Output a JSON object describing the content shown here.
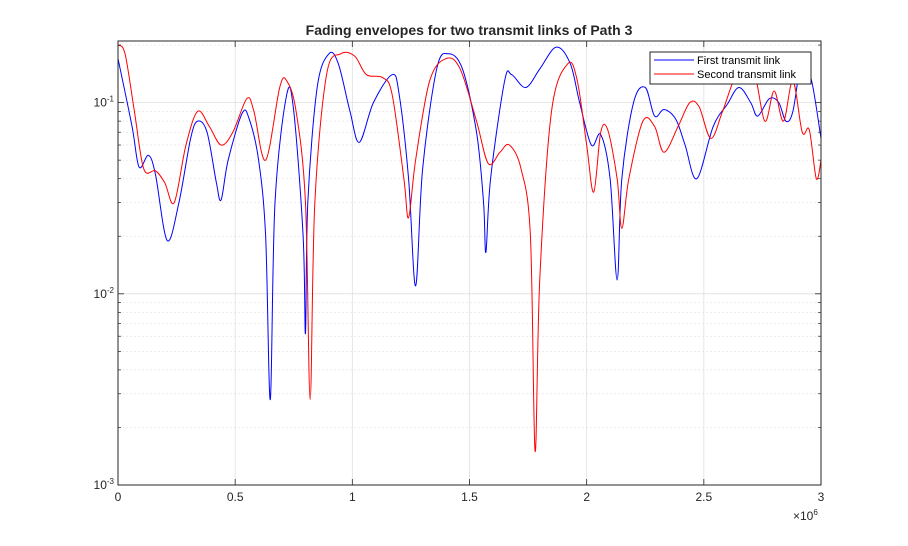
{
  "chart_data": {
    "type": "line",
    "title": "Fading envelopes for two transmit links of Path 3",
    "xlabel": "",
    "ylabel": "",
    "xlim": [
      0,
      3000000
    ],
    "ylim": [
      0.001,
      0.21
    ],
    "yscale": "log",
    "grid": true,
    "legend_position": "top-right",
    "x_ticks": [
      {
        "value": 0,
        "label": "0"
      },
      {
        "value": 500000,
        "label": "0.5"
      },
      {
        "value": 1000000,
        "label": "1"
      },
      {
        "value": 1500000,
        "label": "1.5"
      },
      {
        "value": 2000000,
        "label": "2"
      },
      {
        "value": 2500000,
        "label": "2.5"
      },
      {
        "value": 3000000,
        "label": "3"
      }
    ],
    "x_exponent_label": {
      "base": "×10",
      "exp": "6"
    },
    "y_ticks": [
      {
        "value": 0.001,
        "base": "10",
        "exp": "-3"
      },
      {
        "value": 0.01,
        "base": "10",
        "exp": "-2"
      },
      {
        "value": 0.1,
        "base": "10",
        "exp": "-1"
      }
    ],
    "series": [
      {
        "name": "First transmit link",
        "color": "#0000ff",
        "points": [
          [
            0,
            0.17
          ],
          [
            60000,
            0.075
          ],
          [
            90000,
            0.046
          ],
          [
            130000,
            0.053
          ],
          [
            160000,
            0.042
          ],
          [
            210000,
            0.019
          ],
          [
            260000,
            0.03
          ],
          [
            310000,
            0.065
          ],
          [
            340000,
            0.08
          ],
          [
            380000,
            0.07
          ],
          [
            420000,
            0.038
          ],
          [
            440000,
            0.031
          ],
          [
            470000,
            0.05
          ],
          [
            530000,
            0.088
          ],
          [
            560000,
            0.082
          ],
          [
            600000,
            0.05
          ],
          [
            630000,
            0.02
          ],
          [
            650000,
            0.0028
          ],
          [
            670000,
            0.03
          ],
          [
            720000,
            0.11
          ],
          [
            750000,
            0.09
          ],
          [
            790000,
            0.02
          ],
          [
            800000,
            0.0062
          ],
          [
            810000,
            0.03
          ],
          [
            850000,
            0.12
          ],
          [
            900000,
            0.18
          ],
          [
            940000,
            0.16
          ],
          [
            990000,
            0.09
          ],
          [
            1030000,
            0.062
          ],
          [
            1090000,
            0.1
          ],
          [
            1170000,
            0.14
          ],
          [
            1200000,
            0.11
          ],
          [
            1240000,
            0.04
          ],
          [
            1270000,
            0.011
          ],
          [
            1300000,
            0.045
          ],
          [
            1360000,
            0.15
          ],
          [
            1410000,
            0.18
          ],
          [
            1470000,
            0.15
          ],
          [
            1530000,
            0.07
          ],
          [
            1560000,
            0.03
          ],
          [
            1570000,
            0.0165
          ],
          [
            1590000,
            0.04
          ],
          [
            1650000,
            0.13
          ],
          [
            1680000,
            0.14
          ],
          [
            1740000,
            0.12
          ],
          [
            1800000,
            0.15
          ],
          [
            1870000,
            0.195
          ],
          [
            1930000,
            0.16
          ],
          [
            1970000,
            0.1
          ],
          [
            2020000,
            0.06
          ],
          [
            2060000,
            0.068
          ],
          [
            2100000,
            0.04
          ],
          [
            2130000,
            0.0118
          ],
          [
            2150000,
            0.04
          ],
          [
            2200000,
            0.1
          ],
          [
            2250000,
            0.12
          ],
          [
            2290000,
            0.085
          ],
          [
            2330000,
            0.092
          ],
          [
            2380000,
            0.082
          ],
          [
            2420000,
            0.06
          ],
          [
            2470000,
            0.04
          ],
          [
            2540000,
            0.075
          ],
          [
            2600000,
            0.098
          ],
          [
            2650000,
            0.12
          ],
          [
            2700000,
            0.1
          ],
          [
            2730000,
            0.085
          ],
          [
            2780000,
            0.105
          ],
          [
            2820000,
            0.1
          ],
          [
            2850000,
            0.08
          ],
          [
            2880000,
            0.09
          ],
          [
            2920000,
            0.17
          ],
          [
            2960000,
            0.13
          ],
          [
            3000000,
            0.065
          ]
        ]
      },
      {
        "name": "Second transmit link",
        "color": "#ff0000",
        "points": [
          [
            0,
            0.2
          ],
          [
            30000,
            0.18
          ],
          [
            70000,
            0.09
          ],
          [
            110000,
            0.045
          ],
          [
            160000,
            0.044
          ],
          [
            200000,
            0.038
          ],
          [
            240000,
            0.03
          ],
          [
            290000,
            0.06
          ],
          [
            340000,
            0.09
          ],
          [
            390000,
            0.075
          ],
          [
            440000,
            0.06
          ],
          [
            490000,
            0.07
          ],
          [
            550000,
            0.105
          ],
          [
            580000,
            0.09
          ],
          [
            630000,
            0.05
          ],
          [
            690000,
            0.12
          ],
          [
            720000,
            0.13
          ],
          [
            760000,
            0.09
          ],
          [
            800000,
            0.03
          ],
          [
            820000,
            0.0028
          ],
          [
            840000,
            0.03
          ],
          [
            890000,
            0.14
          ],
          [
            950000,
            0.18
          ],
          [
            1010000,
            0.175
          ],
          [
            1060000,
            0.14
          ],
          [
            1130000,
            0.135
          ],
          [
            1170000,
            0.11
          ],
          [
            1220000,
            0.04
          ],
          [
            1240000,
            0.025
          ],
          [
            1270000,
            0.05
          ],
          [
            1330000,
            0.13
          ],
          [
            1400000,
            0.17
          ],
          [
            1460000,
            0.15
          ],
          [
            1530000,
            0.08
          ],
          [
            1580000,
            0.048
          ],
          [
            1630000,
            0.055
          ],
          [
            1670000,
            0.06
          ],
          [
            1720000,
            0.045
          ],
          [
            1760000,
            0.02
          ],
          [
            1780000,
            0.0015
          ],
          [
            1800000,
            0.012
          ],
          [
            1850000,
            0.09
          ],
          [
            1920000,
            0.16
          ],
          [
            1960000,
            0.13
          ],
          [
            2000000,
            0.06
          ],
          [
            2030000,
            0.034
          ],
          [
            2060000,
            0.07
          ],
          [
            2090000,
            0.072
          ],
          [
            2130000,
            0.04
          ],
          [
            2150000,
            0.022
          ],
          [
            2180000,
            0.04
          ],
          [
            2240000,
            0.08
          ],
          [
            2290000,
            0.075
          ],
          [
            2330000,
            0.055
          ],
          [
            2390000,
            0.075
          ],
          [
            2440000,
            0.1
          ],
          [
            2480000,
            0.095
          ],
          [
            2530000,
            0.065
          ],
          [
            2580000,
            0.09
          ],
          [
            2640000,
            0.14
          ],
          [
            2710000,
            0.15
          ],
          [
            2760000,
            0.08
          ],
          [
            2800000,
            0.115
          ],
          [
            2840000,
            0.08
          ],
          [
            2880000,
            0.13
          ],
          [
            2920000,
            0.07
          ],
          [
            2950000,
            0.072
          ],
          [
            2980000,
            0.04
          ],
          [
            3000000,
            0.05
          ]
        ]
      }
    ]
  }
}
